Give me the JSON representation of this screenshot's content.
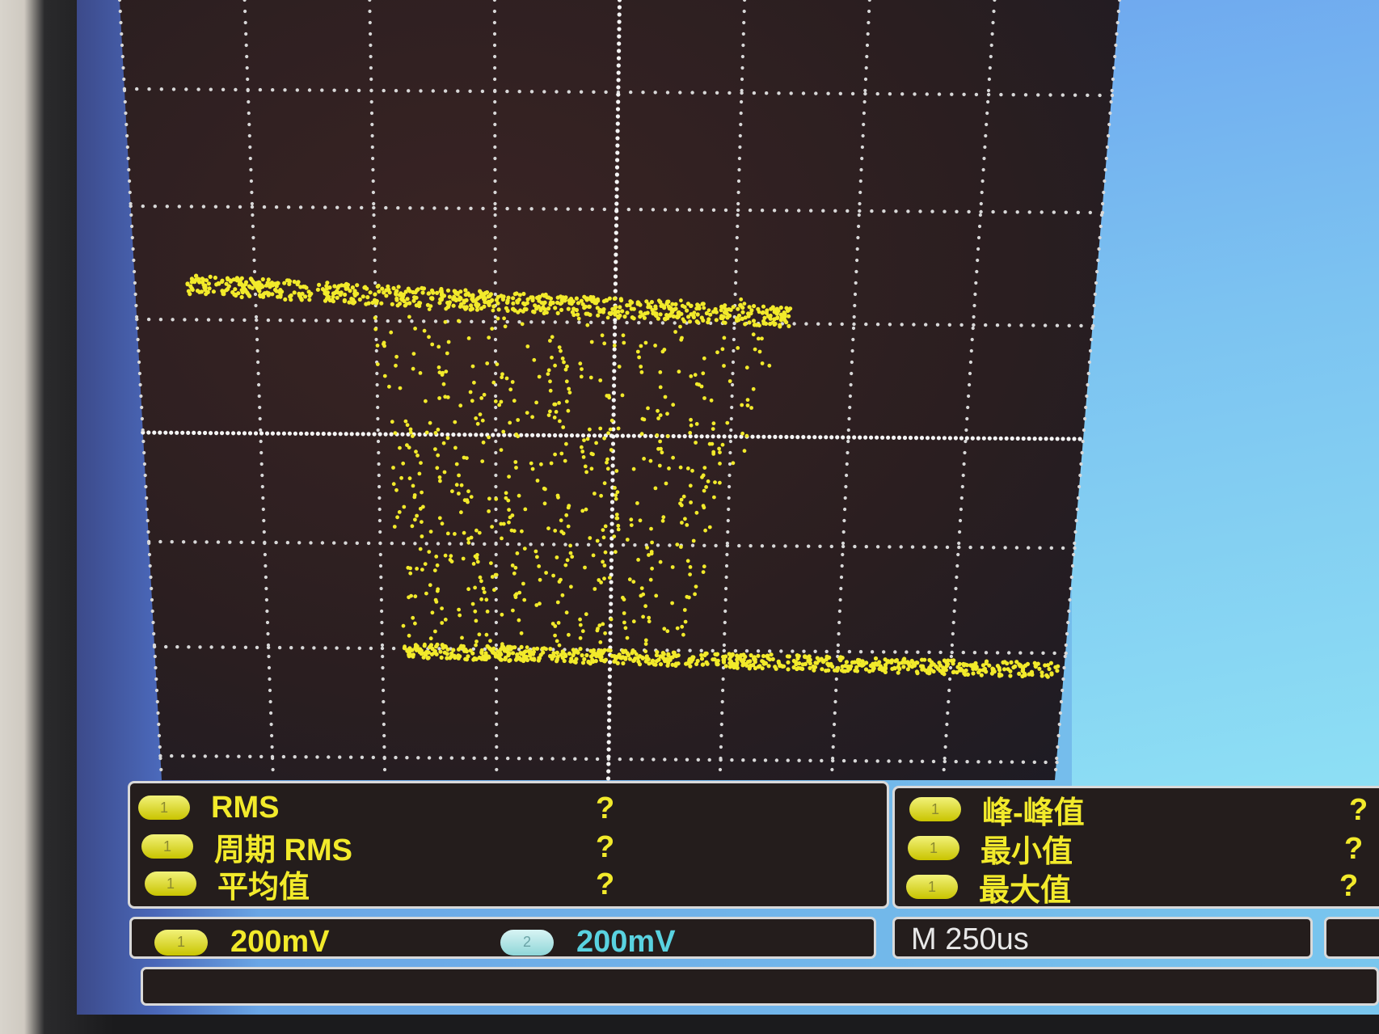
{
  "measurements_left": [
    {
      "channel": "1",
      "label": "RMS",
      "value": "?"
    },
    {
      "channel": "1",
      "label": "周期 RMS",
      "value": "?"
    },
    {
      "channel": "1",
      "label": "平均值",
      "value": "?"
    }
  ],
  "measurements_right": [
    {
      "channel": "1",
      "label": "峰-峰值",
      "value": "?"
    },
    {
      "channel": "1",
      "label": "最小值",
      "value": "?"
    },
    {
      "channel": "1",
      "label": "最大值",
      "value": "?"
    }
  ],
  "status": {
    "ch1": {
      "channel": "1",
      "scale": "200mV"
    },
    "ch2": {
      "channel": "2",
      "scale": "200mV"
    },
    "timebase": "M 250us"
  },
  "colors": {
    "trace": "#f2ea2b",
    "ch2": "#59d2e0",
    "panel_bg": "#241d1c",
    "screen_bg": "#241a1b"
  }
}
